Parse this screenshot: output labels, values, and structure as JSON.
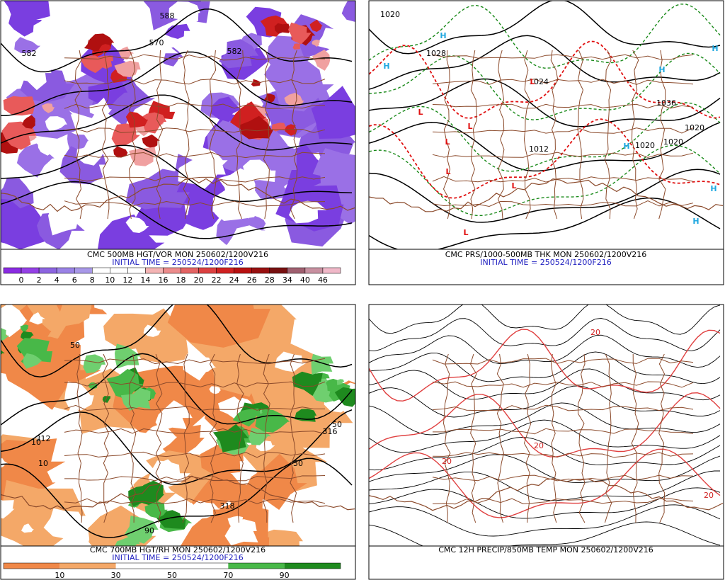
{
  "panels": [
    {
      "caption": "CMC 500MB HGT/VOR MON 250602/1200V216",
      "initial_time": "INITIAL TIME = 250524/1200F216",
      "colorbar": {
        "labels": [
          "0",
          "2",
          "4",
          "6",
          "8",
          "10",
          "12",
          "14",
          "16",
          "18",
          "20",
          "22",
          "24",
          "26",
          "28",
          "34",
          "40",
          "46"
        ],
        "colors": [
          "#8a2be2",
          "#9440e6",
          "#8c64e0",
          "#9a82e6",
          "#a898e8",
          "#ffffff",
          "#ffffff",
          "#ffffff",
          "#f4b4b4",
          "#ec8c8c",
          "#e46464",
          "#dc4040",
          "#d02020",
          "#b81010",
          "#981010",
          "#781010",
          "#a06070",
          "#c890a0",
          "#f0b8c8"
        ]
      },
      "contour_labels": [
        "582",
        "570",
        "582",
        "588"
      ]
    },
    {
      "caption": "CMC PRS/1000-500MB THK MON 250602/1200V216",
      "initial_time": "INITIAL TIME = 250524/1200F216",
      "contour_labels": [
        "1020",
        "1028",
        "1024",
        "1020",
        "1012",
        "1020",
        "1036",
        "1020"
      ],
      "highs_lows": [
        "H",
        "H",
        "H",
        "H",
        "H",
        "H",
        "H",
        "L",
        "L",
        "L",
        "L",
        "L",
        "L",
        "L"
      ]
    },
    {
      "caption": "CMC 700MB HGT/RH MON 250602/1200V216",
      "initial_time": "INITIAL TIME = 250524/1200F216",
      "colorbar": {
        "labels": [
          "10",
          "30",
          "50",
          "70",
          "90"
        ],
        "colors": [
          "#f08848",
          "#f4a868",
          "#ffffff",
          "#ffffff",
          "#48b848",
          "#1e8a1e"
        ]
      },
      "contour_labels": [
        "312",
        "10",
        "10",
        "50",
        "318",
        "316",
        "50",
        "50",
        "90"
      ]
    },
    {
      "caption": "CMC 12H PRECIP/850MB TEMP MON 250602/1200V216",
      "contour_labels": [
        "20",
        "20",
        "20",
        "20"
      ]
    }
  ]
}
